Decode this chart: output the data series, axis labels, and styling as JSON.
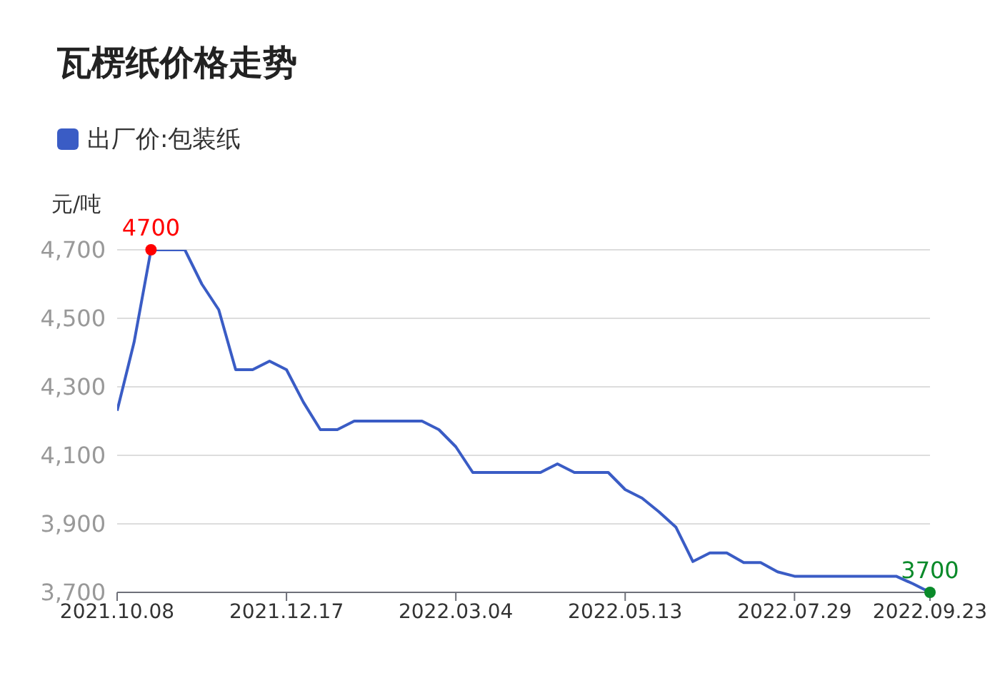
{
  "chart_data": {
    "type": "line",
    "title": "瓦楞纸价格走势",
    "ylabel": "元/吨",
    "categories": [
      "2021.10.08",
      null,
      null,
      null,
      null,
      null,
      null,
      null,
      null,
      null,
      "2021.12.17",
      null,
      null,
      null,
      null,
      null,
      null,
      null,
      null,
      null,
      "2022.03.04",
      null,
      null,
      null,
      null,
      null,
      null,
      null,
      null,
      null,
      "2022.05.13",
      null,
      null,
      null,
      null,
      null,
      null,
      null,
      null,
      null,
      "2022.07.29",
      null,
      null,
      null,
      null,
      null,
      null,
      null,
      "2022.09.23"
    ],
    "series": [
      {
        "name": "出厂价:包装纸",
        "color": "#3a5cc5",
        "values": [
          4230,
          4430,
          4700,
          4700,
          4700,
          4600,
          4525,
          4350,
          4350,
          4375,
          4350,
          4255,
          4175,
          4175,
          4200,
          4200,
          4200,
          4200,
          4200,
          4175,
          4125,
          4050,
          4050,
          4050,
          4050,
          4050,
          4075,
          4050,
          4050,
          4050,
          4000,
          3975,
          3935,
          3890,
          3790,
          3815,
          3815,
          3787,
          3787,
          3760,
          3747,
          3747,
          3747,
          3747,
          3747,
          3747,
          3747,
          3725,
          3700
        ]
      }
    ],
    "ylim": [
      3700,
      4700
    ],
    "yticks": [
      {
        "value": 3700,
        "label": "3,700"
      },
      {
        "value": 3900,
        "label": "3,900"
      },
      {
        "value": 4100,
        "label": "4,100"
      },
      {
        "value": 4300,
        "label": "4,300"
      },
      {
        "value": 4500,
        "label": "4,500"
      },
      {
        "value": 4700,
        "label": "4,700"
      }
    ],
    "annotations": [
      {
        "text": "4700",
        "y": 4700
      },
      {
        "text": "3700",
        "x": "2022.09.23",
        "y": 3700
      }
    ],
    "grid": "y",
    "legend": "top left",
    "marker": "none",
    "line_style": "solid"
  }
}
